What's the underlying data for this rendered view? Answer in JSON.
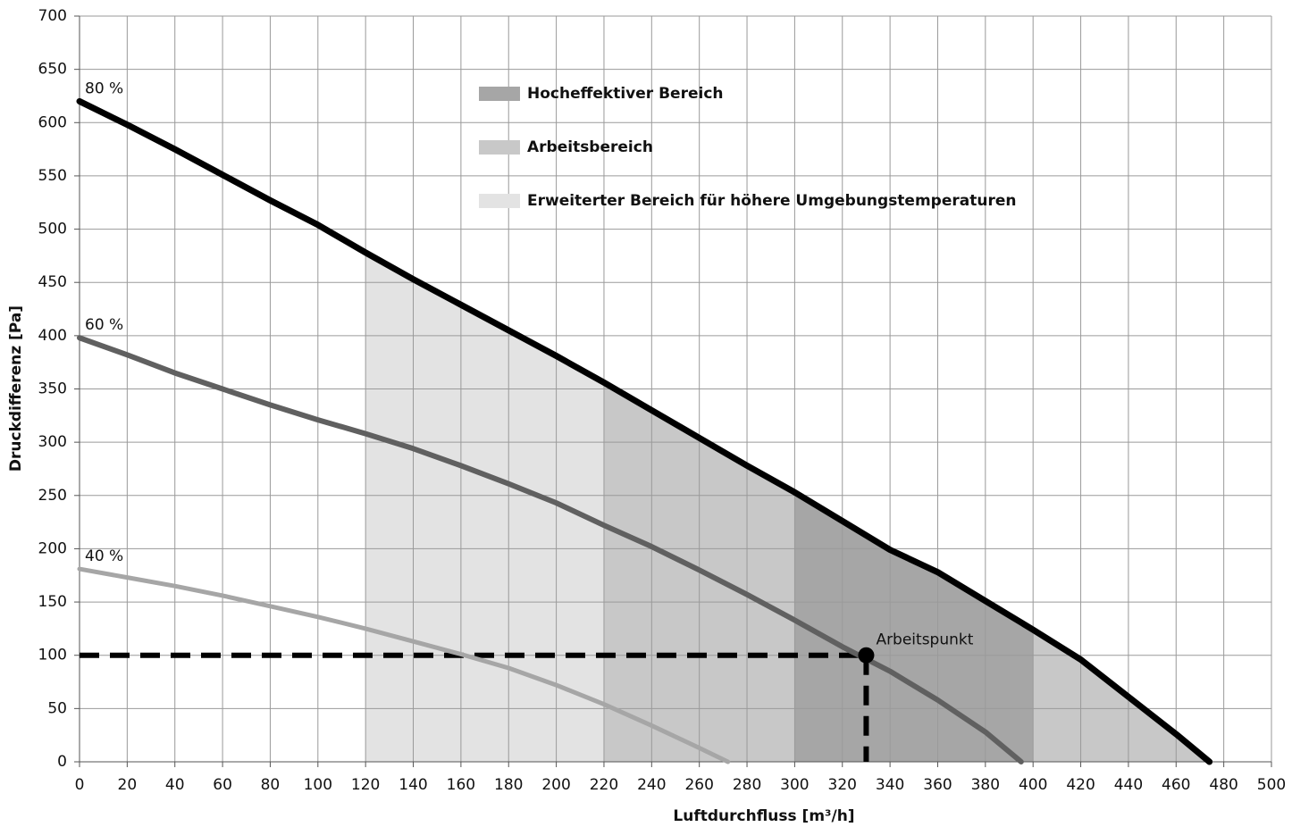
{
  "chart_data": {
    "type": "line",
    "xlabel": "Luftdurchfluss [m³/h]",
    "ylabel": "Druckdifferenz [Pa]",
    "xlim": [
      0,
      500
    ],
    "ylim": [
      0,
      700
    ],
    "xticks": [
      0,
      20,
      40,
      60,
      80,
      100,
      120,
      140,
      160,
      180,
      200,
      220,
      240,
      260,
      280,
      300,
      320,
      340,
      360,
      380,
      400,
      420,
      440,
      460,
      480,
      500
    ],
    "yticks": [
      0,
      50,
      100,
      150,
      200,
      250,
      300,
      350,
      400,
      450,
      500,
      550,
      600,
      650,
      700
    ],
    "grid": true,
    "series": [
      {
        "name": "80 %",
        "color": "#000000",
        "x": [
          0,
          20,
          40,
          60,
          80,
          100,
          120,
          140,
          160,
          180,
          200,
          220,
          240,
          260,
          280,
          300,
          320,
          340,
          360,
          380,
          400,
          420,
          440,
          460,
          474
        ],
        "values": [
          620,
          598,
          575,
          551,
          527,
          504,
          478,
          453,
          429,
          405,
          381,
          356,
          330,
          304,
          278,
          253,
          226,
          199,
          178,
          151,
          124,
          96,
          61,
          26,
          0
        ]
      },
      {
        "name": "60 %",
        "color": "#606060",
        "x": [
          0,
          20,
          40,
          60,
          80,
          100,
          120,
          140,
          160,
          180,
          200,
          220,
          240,
          260,
          280,
          300,
          320,
          340,
          360,
          380,
          395
        ],
        "values": [
          398,
          382,
          365,
          350,
          335,
          321,
          308,
          294,
          278,
          261,
          243,
          222,
          202,
          180,
          157,
          133,
          108,
          85,
          58,
          28,
          0
        ]
      },
      {
        "name": "40 %",
        "color": "#a6a6a6",
        "x": [
          0,
          20,
          40,
          60,
          80,
          100,
          120,
          140,
          160,
          180,
          200,
          220,
          240,
          260,
          272
        ],
        "values": [
          181,
          173,
          165,
          156,
          146,
          136,
          125,
          113,
          101,
          88,
          72,
          54,
          34,
          13,
          0
        ]
      }
    ],
    "areas": [
      {
        "name": "Hocheffektiver Bereich",
        "color": "#a6a6a6",
        "ranges": [
          [
            300,
            400
          ]
        ]
      },
      {
        "name": "Arbeitsbereich",
        "color": "#c8c8c8",
        "ranges": [
          [
            220,
            300
          ],
          [
            400,
            474
          ]
        ]
      },
      {
        "name": "Erweiterter Bereich für höhere Umgebungstemperaturen",
        "color": "#e3e3e3",
        "ranges": [
          [
            120,
            220
          ]
        ]
      }
    ],
    "point": {
      "label": "Arbeitspunkt",
      "x": 330,
      "y": 100
    }
  }
}
